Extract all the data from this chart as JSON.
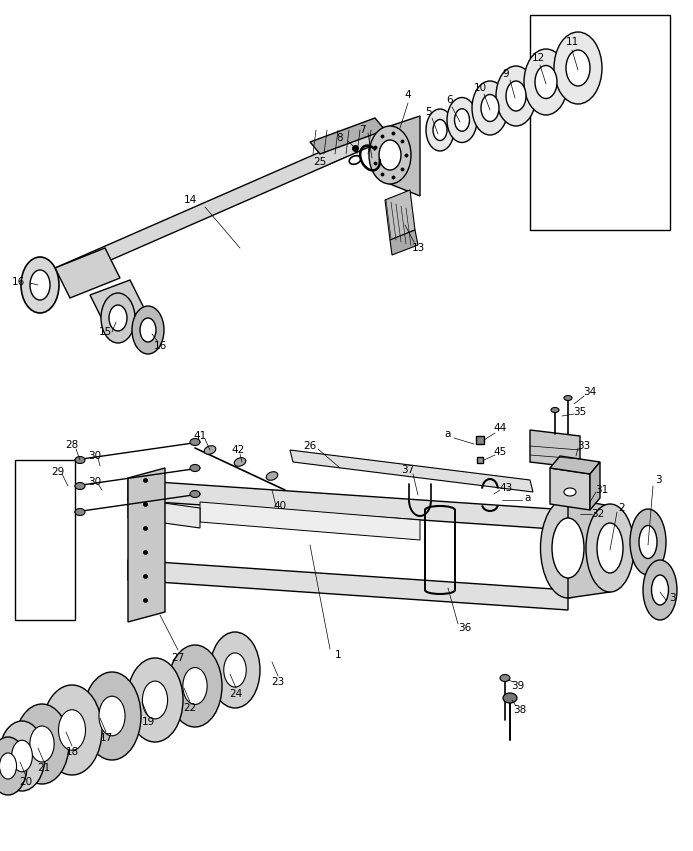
{
  "figsize": [
    6.93,
    8.51
  ],
  "dpi": 100,
  "bg": "white",
  "lc": "black",
  "lw": 1.0,
  "thin": 0.6,
  "thick": 1.4
}
